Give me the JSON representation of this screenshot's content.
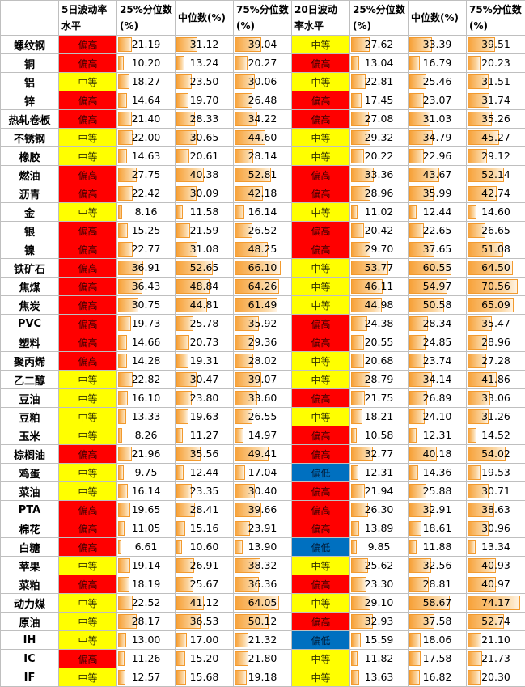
{
  "headers": [
    "",
    "5日波动率水平",
    "25%分位数(%)",
    "中位数(%)",
    "75%分位数(%)",
    "20日波动率水平",
    "25%分位数(%)",
    "中位数(%)",
    "75%分位数(%)"
  ],
  "header_lines": [
    [
      "",
      ""
    ],
    [
      "5日波动率",
      "水平"
    ],
    [
      "25%分位数",
      "(%)"
    ],
    [
      "中位数(%)",
      ""
    ],
    [
      "75%分位数",
      "(%)"
    ],
    [
      "20日波动",
      "率水平"
    ],
    [
      "25%分位数",
      "(%)"
    ],
    [
      "中位数(%)",
      ""
    ],
    [
      "75%分位数",
      "(%)"
    ]
  ],
  "colors": {
    "high": "#ff0000",
    "mid": "#ffff00",
    "low": "#0070c0",
    "bar": "#f7a23a"
  },
  "rows": [
    {
      "name": "螺纹钢",
      "l5": "偏高",
      "a": "21.19",
      "b": "31.12",
      "c": "39.04",
      "l20": "中等",
      "d": "27.62",
      "e": "33.39",
      "f": "39.51"
    },
    {
      "name": "铜",
      "l5": "偏高",
      "a": "10.20",
      "b": "13.24",
      "c": "20.27",
      "l20": "偏高",
      "d": "13.04",
      "e": "16.79",
      "f": "20.23"
    },
    {
      "name": "铝",
      "l5": "中等",
      "a": "18.27",
      "b": "23.50",
      "c": "30.06",
      "l20": "中等",
      "d": "22.81",
      "e": "25.46",
      "f": "31.51"
    },
    {
      "name": "锌",
      "l5": "偏高",
      "a": "14.64",
      "b": "19.70",
      "c": "26.48",
      "l20": "偏高",
      "d": "17.45",
      "e": "23.07",
      "f": "31.74"
    },
    {
      "name": "热轧卷板",
      "l5": "偏高",
      "a": "21.40",
      "b": "28.33",
      "c": "34.22",
      "l20": "偏高",
      "d": "27.08",
      "e": "31.03",
      "f": "35.26"
    },
    {
      "name": "不锈钢",
      "l5": "中等",
      "a": "22.00",
      "b": "30.65",
      "c": "44.60",
      "l20": "中等",
      "d": "29.32",
      "e": "34.79",
      "f": "45.27"
    },
    {
      "name": "橡胶",
      "l5": "中等",
      "a": "14.63",
      "b": "20.61",
      "c": "28.14",
      "l20": "中等",
      "d": "20.22",
      "e": "22.96",
      "f": "29.12"
    },
    {
      "name": "燃油",
      "l5": "偏高",
      "a": "27.75",
      "b": "40.38",
      "c": "52.81",
      "l20": "偏高",
      "d": "33.36",
      "e": "43.67",
      "f": "52.14"
    },
    {
      "name": "沥青",
      "l5": "偏高",
      "a": "22.42",
      "b": "30.09",
      "c": "42.18",
      "l20": "偏高",
      "d": "28.96",
      "e": "35.99",
      "f": "42.74"
    },
    {
      "name": "金",
      "l5": "中等",
      "a": "8.16",
      "b": "11.58",
      "c": "16.14",
      "l20": "中等",
      "d": "11.02",
      "e": "12.44",
      "f": "14.60"
    },
    {
      "name": "银",
      "l5": "偏高",
      "a": "15.25",
      "b": "21.59",
      "c": "26.52",
      "l20": "偏高",
      "d": "20.42",
      "e": "22.65",
      "f": "26.65"
    },
    {
      "name": "镍",
      "l5": "偏高",
      "a": "22.77",
      "b": "31.08",
      "c": "48.25",
      "l20": "偏高",
      "d": "29.70",
      "e": "37.65",
      "f": "51.08"
    },
    {
      "name": "铁矿石",
      "l5": "偏高",
      "a": "36.91",
      "b": "52.65",
      "c": "66.10",
      "l20": "中等",
      "d": "53.77",
      "e": "60.55",
      "f": "64.50"
    },
    {
      "name": "焦煤",
      "l5": "偏高",
      "a": "36.43",
      "b": "48.84",
      "c": "64.26",
      "l20": "中等",
      "d": "46.11",
      "e": "54.97",
      "f": "70.56"
    },
    {
      "name": "焦炭",
      "l5": "偏高",
      "a": "30.75",
      "b": "44.81",
      "c": "61.49",
      "l20": "中等",
      "d": "44.98",
      "e": "50.58",
      "f": "65.09"
    },
    {
      "name": "PVC",
      "l5": "偏高",
      "a": "19.73",
      "b": "25.78",
      "c": "35.92",
      "l20": "偏高",
      "d": "24.38",
      "e": "28.34",
      "f": "35.47"
    },
    {
      "name": "塑料",
      "l5": "偏高",
      "a": "14.66",
      "b": "20.73",
      "c": "29.36",
      "l20": "偏高",
      "d": "20.55",
      "e": "24.85",
      "f": "28.96"
    },
    {
      "name": "聚丙烯",
      "l5": "偏高",
      "a": "14.28",
      "b": "19.31",
      "c": "28.02",
      "l20": "中等",
      "d": "20.68",
      "e": "23.74",
      "f": "27.28"
    },
    {
      "name": "乙二醇",
      "l5": "中等",
      "a": "22.82",
      "b": "30.47",
      "c": "39.07",
      "l20": "中等",
      "d": "28.79",
      "e": "34.14",
      "f": "41.86"
    },
    {
      "name": "豆油",
      "l5": "中等",
      "a": "16.10",
      "b": "23.80",
      "c": "33.60",
      "l20": "偏高",
      "d": "21.75",
      "e": "26.89",
      "f": "33.06"
    },
    {
      "name": "豆粕",
      "l5": "中等",
      "a": "13.33",
      "b": "19.63",
      "c": "26.55",
      "l20": "中等",
      "d": "18.21",
      "e": "24.10",
      "f": "31.26"
    },
    {
      "name": "玉米",
      "l5": "中等",
      "a": "8.26",
      "b": "11.27",
      "c": "14.97",
      "l20": "偏高",
      "d": "10.58",
      "e": "12.31",
      "f": "14.52"
    },
    {
      "name": "棕榈油",
      "l5": "偏高",
      "a": "21.96",
      "b": "35.56",
      "c": "49.41",
      "l20": "偏高",
      "d": "32.77",
      "e": "40.18",
      "f": "54.02"
    },
    {
      "name": "鸡蛋",
      "l5": "中等",
      "a": "9.75",
      "b": "12.44",
      "c": "17.04",
      "l20": "偏低",
      "d": "12.31",
      "e": "14.36",
      "f": "19.53"
    },
    {
      "name": "菜油",
      "l5": "中等",
      "a": "16.14",
      "b": "23.35",
      "c": "30.40",
      "l20": "偏高",
      "d": "21.94",
      "e": "25.88",
      "f": "30.71"
    },
    {
      "name": "PTA",
      "l5": "偏高",
      "a": "19.65",
      "b": "28.41",
      "c": "39.66",
      "l20": "偏高",
      "d": "26.30",
      "e": "32.91",
      "f": "38.63"
    },
    {
      "name": "棉花",
      "l5": "偏高",
      "a": "11.05",
      "b": "15.16",
      "c": "23.91",
      "l20": "偏高",
      "d": "13.89",
      "e": "18.61",
      "f": "30.96"
    },
    {
      "name": "白糖",
      "l5": "偏高",
      "a": "6.61",
      "b": "10.60",
      "c": "13.90",
      "l20": "偏低",
      "d": "9.85",
      "e": "11.88",
      "f": "13.34"
    },
    {
      "name": "苹果",
      "l5": "中等",
      "a": "19.14",
      "b": "26.91",
      "c": "38.32",
      "l20": "中等",
      "d": "25.62",
      "e": "32.56",
      "f": "40.93"
    },
    {
      "name": "菜粕",
      "l5": "偏高",
      "a": "18.19",
      "b": "25.67",
      "c": "36.36",
      "l20": "偏高",
      "d": "23.30",
      "e": "28.81",
      "f": "40.97"
    },
    {
      "name": "动力煤",
      "l5": "中等",
      "a": "22.52",
      "b": "41.12",
      "c": "64.05",
      "l20": "中等",
      "d": "29.10",
      "e": "58.67",
      "f": "74.17"
    },
    {
      "name": "原油",
      "l5": "中等",
      "a": "28.17",
      "b": "36.53",
      "c": "50.12",
      "l20": "偏高",
      "d": "32.93",
      "e": "37.58",
      "f": "52.74"
    },
    {
      "name": "IH",
      "l5": "中等",
      "a": "13.00",
      "b": "17.00",
      "c": "21.32",
      "l20": "偏低",
      "d": "15.59",
      "e": "18.06",
      "f": "21.10"
    },
    {
      "name": "IC",
      "l5": "偏高",
      "a": "11.26",
      "b": "15.20",
      "c": "21.80",
      "l20": "中等",
      "d": "11.82",
      "e": "17.58",
      "f": "21.73"
    },
    {
      "name": "IF",
      "l5": "中等",
      "a": "12.57",
      "b": "15.68",
      "c": "19.18",
      "l20": "中等",
      "d": "13.63",
      "e": "16.82",
      "f": "20.30"
    }
  ]
}
